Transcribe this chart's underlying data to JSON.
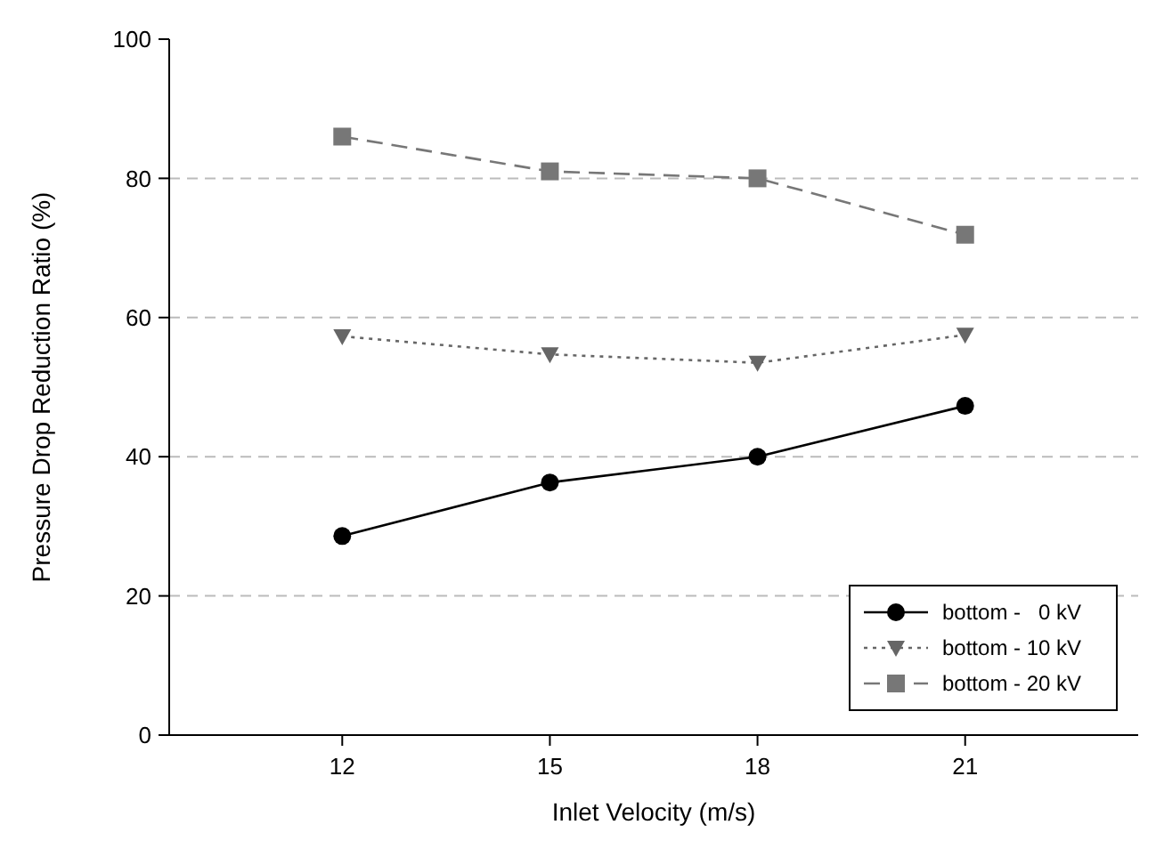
{
  "chart_data": {
    "type": "line",
    "xlabel": "Inlet Velocity (m/s)",
    "ylabel": "Pressure Drop Reduction Ratio (%)",
    "x": [
      12,
      15,
      18,
      21
    ],
    "xlim": [
      9.5,
      23.5
    ],
    "xticks": [
      12,
      15,
      18,
      21
    ],
    "ylim": [
      0,
      100
    ],
    "yticks": [
      0,
      20,
      40,
      60,
      80,
      100
    ],
    "grid": "y",
    "legend": "bottom right",
    "series": [
      {
        "name": "bottom -   0 kV",
        "color": "#000000",
        "marker": "circle",
        "line_style": "solid",
        "values": [
          28.6,
          36.3,
          40,
          47.3
        ]
      },
      {
        "name": "bottom - 10 kV",
        "color": "#666666",
        "marker": "triangle",
        "line_style": "dotted",
        "values": [
          57.3,
          54.7,
          53.5,
          57.5
        ]
      },
      {
        "name": "bottom - 20 kV",
        "color": "#777777",
        "marker": "square",
        "line_style": "dashed",
        "values": [
          86,
          81,
          80,
          71.9
        ]
      }
    ]
  }
}
